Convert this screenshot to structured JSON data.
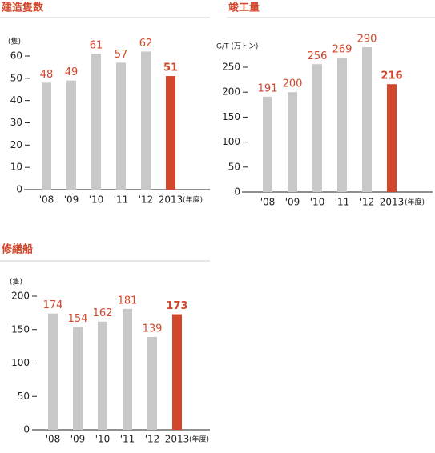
{
  "chart_data": [
    {
      "type": "bar",
      "title": "建造隻数",
      "y_unit": "(隻)",
      "x_label": "(年度)",
      "categories": [
        "'08",
        "'09",
        "'10",
        "'11",
        "'12",
        "2013"
      ],
      "values": [
        48,
        49,
        61,
        57,
        62,
        51
      ],
      "colors": [
        "#c8c8c8",
        "#c8c8c8",
        "#c8c8c8",
        "#c8c8c8",
        "#c8c8c8",
        "#d2472b"
      ],
      "label_color": "#d2472b",
      "ylim": [
        0,
        65
      ],
      "yticks": [
        0,
        10,
        20,
        30,
        40,
        50,
        60
      ]
    },
    {
      "type": "bar",
      "title": "竣工量",
      "y_unit": "G/T (万トン)",
      "x_label": "(年度)",
      "categories": [
        "'08",
        "'09",
        "'10",
        "'11",
        "'12",
        "2013"
      ],
      "values": [
        191,
        200,
        256,
        269,
        290,
        216
      ],
      "colors": [
        "#c8c8c8",
        "#c8c8c8",
        "#c8c8c8",
        "#c8c8c8",
        "#c8c8c8",
        "#d2472b"
      ],
      "label_color": "#d2472b",
      "ylim": [
        0,
        300
      ],
      "yticks": [
        0,
        50,
        100,
        150,
        200,
        250
      ]
    },
    {
      "type": "bar",
      "title": "修繕船",
      "y_unit": "(隻)",
      "x_label": "(年度)",
      "categories": [
        "'08",
        "'09",
        "'10",
        "'11",
        "'12",
        "2013"
      ],
      "values": [
        174,
        154,
        162,
        181,
        139,
        173
      ],
      "colors": [
        "#c8c8c8",
        "#c8c8c8",
        "#c8c8c8",
        "#c8c8c8",
        "#c8c8c8",
        "#d2472b"
      ],
      "label_color": "#d2472b",
      "ylim": [
        0,
        200
      ],
      "yticks": [
        0,
        50,
        100,
        150,
        200
      ]
    }
  ]
}
